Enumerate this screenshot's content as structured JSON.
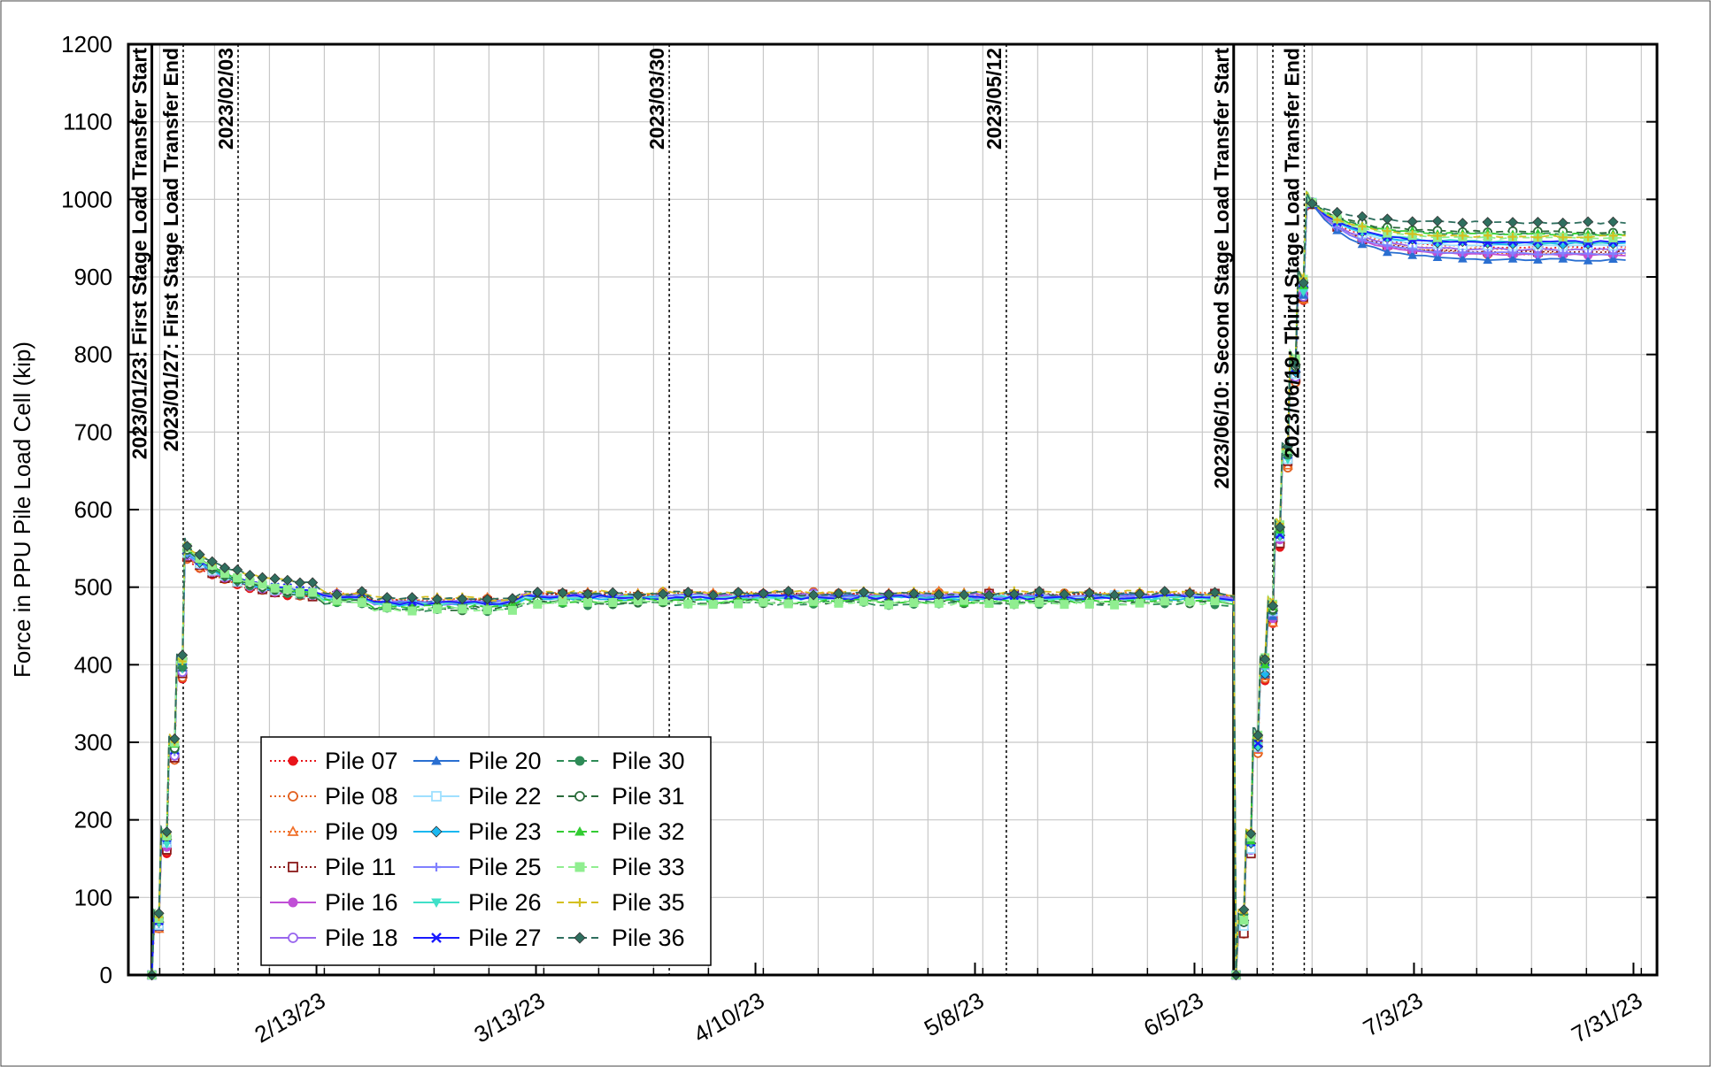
{
  "chart_data": {
    "type": "line",
    "title": "",
    "xlabel": "",
    "ylabel": "Force in PPU Pile Load Cell (kip)",
    "x_type": "date",
    "xlim": [
      "2023-01-20",
      "2023-08-03"
    ],
    "ylim": [
      0,
      1200
    ],
    "yticks": [
      0,
      100,
      200,
      300,
      400,
      500,
      600,
      700,
      800,
      900,
      1000,
      1100,
      1200
    ],
    "xticks": [
      {
        "date": "2023-02-13",
        "label": "2/13/23"
      },
      {
        "date": "2023-03-13",
        "label": "3/13/23"
      },
      {
        "date": "2023-04-10",
        "label": "4/10/23"
      },
      {
        "date": "2023-05-08",
        "label": "5/8/23"
      },
      {
        "date": "2023-06-05",
        "label": "6/5/23"
      },
      {
        "date": "2023-07-03",
        "label": "7/3/23"
      },
      {
        "date": "2023-07-31",
        "label": "7/31/23"
      }
    ],
    "grid": true,
    "legend_position": "bottom-left",
    "vlines": [
      {
        "date": "2023-01-23",
        "label": "2023/01/23: First Stage Load Transfer Start",
        "style": "solid"
      },
      {
        "date": "2023-01-27",
        "label": "2023/01/27: First Stage Load Transfer End",
        "style": "dotted"
      },
      {
        "date": "2023-02-03",
        "label": "2023/02/03",
        "style": "dotted"
      },
      {
        "date": "2023-03-30",
        "label": "2023/03/30",
        "style": "dotted"
      },
      {
        "date": "2023-05-12",
        "label": "2023/05/12",
        "style": "dotted"
      },
      {
        "date": "2023-06-10",
        "label": "2023/06/10: Second Stage Load Transfer Start",
        "style": "solid"
      },
      {
        "date": "2023-06-15",
        "label": "",
        "style": "dotted"
      },
      {
        "date": "2023-06-19",
        "label": "2023/06/19: Third Stage Load Transfer End",
        "style": "dotted"
      }
    ],
    "series": [
      {
        "name": "Pile 07",
        "color": "#e8141a",
        "marker": "circle",
        "dash": "dotted",
        "final": 938,
        "plateau": 490
      },
      {
        "name": "Pile 08",
        "color": "#e2601f",
        "marker": "circle-open",
        "dash": "dotted",
        "final": 930,
        "plateau": 491
      },
      {
        "name": "Pile 09",
        "color": "#f0702a",
        "marker": "triangle-open",
        "dash": "dotted",
        "final": 935,
        "plateau": 492
      },
      {
        "name": "Pile 11",
        "color": "#8b1a1a",
        "marker": "square-open",
        "dash": "dotted",
        "final": 932,
        "plateau": 489
      },
      {
        "name": "Pile 16",
        "color": "#c04fd6",
        "marker": "circle",
        "dash": "solid",
        "final": 928,
        "plateau": 488
      },
      {
        "name": "Pile 18",
        "color": "#9966ee",
        "marker": "circle-open",
        "dash": "solid",
        "final": 935,
        "plateau": 489
      },
      {
        "name": "Pile 20",
        "color": "#2a6fd1",
        "marker": "triangle",
        "dash": "solid",
        "final": 922,
        "plateau": 488
      },
      {
        "name": "Pile 22",
        "color": "#9fe0ff",
        "marker": "square-open",
        "dash": "solid",
        "final": 940,
        "plateau": 487
      },
      {
        "name": "Pile 23",
        "color": "#1ab8f0",
        "marker": "diamond",
        "dash": "solid",
        "final": 943,
        "plateau": 486
      },
      {
        "name": "Pile 25",
        "color": "#8080ff",
        "marker": "plus",
        "dash": "solid",
        "final": 930,
        "plateau": 488
      },
      {
        "name": "Pile 26",
        "color": "#40e0c8",
        "marker": "triangle-down",
        "dash": "solid",
        "final": 945,
        "plateau": 486
      },
      {
        "name": "Pile 27",
        "color": "#1a1aff",
        "marker": "cross",
        "dash": "solid",
        "final": 945,
        "plateau": 487
      },
      {
        "name": "Pile 30",
        "color": "#2e8b57",
        "marker": "circle",
        "dash": "dashed",
        "final": 955,
        "plateau": 479
      },
      {
        "name": "Pile 31",
        "color": "#2a6b3a",
        "marker": "circle-open",
        "dash": "dashed",
        "final": 958,
        "plateau": 481
      },
      {
        "name": "Pile 32",
        "color": "#33cc33",
        "marker": "triangle",
        "dash": "dashed",
        "final": 955,
        "plateau": 482
      },
      {
        "name": "Pile 33",
        "color": "#90ee90",
        "marker": "square",
        "dash": "dashed",
        "final": 950,
        "plateau": 480
      },
      {
        "name": "Pile 35",
        "color": "#d4c020",
        "marker": "plus",
        "dash": "dashed",
        "final": 952,
        "plateau": 493
      },
      {
        "name": "Pile 36",
        "color": "#2f6f5f",
        "marker": "diamond",
        "dash": "dashed",
        "final": 970,
        "plateau": 492
      }
    ]
  }
}
